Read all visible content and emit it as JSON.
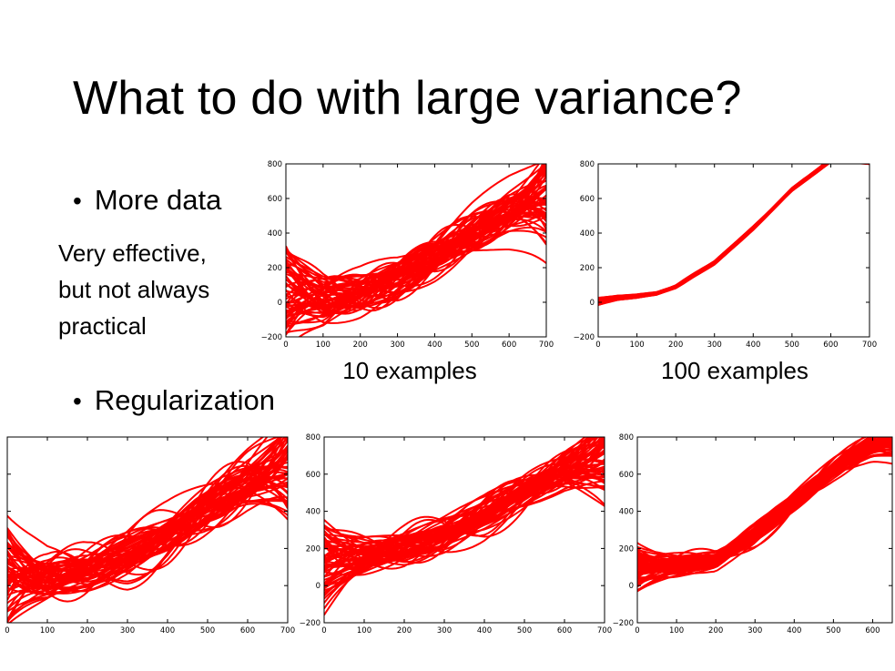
{
  "slide": {
    "title": "What to do with large variance?",
    "bullets": {
      "more_data": "More data",
      "note_lines": [
        "Very effective,",
        "but not always",
        "practical"
      ],
      "regularization": "Regularization"
    },
    "bullet_symbol": "•"
  },
  "colors": {
    "curve": "#ff0000",
    "axis": "#000000",
    "background": "#ffffff"
  },
  "chart_data": [
    {
      "type": "line",
      "caption": "10 examples",
      "xlim": [
        0,
        700
      ],
      "ylim": [
        -200,
        800
      ],
      "xticks": [
        0,
        100,
        200,
        300,
        400,
        500,
        600,
        700
      ],
      "yticks": [
        -200,
        0,
        200,
        400,
        600,
        800
      ],
      "show_yticks": true,
      "curves": {
        "count": 60,
        "base_x": [
          0,
          100,
          200,
          300,
          400,
          500,
          600,
          700
        ],
        "base_y": [
          60,
          20,
          60,
          140,
          260,
          400,
          520,
          620
        ],
        "spread": 260
      }
    },
    {
      "type": "line",
      "caption": "100 examples",
      "xlim": [
        0,
        700
      ],
      "ylim": [
        -200,
        800
      ],
      "xticks": [
        0,
        100,
        200,
        300,
        400,
        500,
        600,
        700
      ],
      "yticks": [
        -200,
        0,
        200,
        400,
        600,
        800
      ],
      "show_yticks": true,
      "curves": {
        "count": 60,
        "base_x": [
          0,
          50,
          100,
          150,
          200,
          300,
          400,
          500,
          600
        ],
        "base_y": [
          5,
          25,
          35,
          50,
          90,
          230,
          430,
          650,
          820
        ],
        "spread": 20
      }
    },
    {
      "type": "line",
      "caption": "",
      "xlim": [
        0,
        700
      ],
      "ylim": [
        -200,
        800
      ],
      "xticks": [
        0,
        100,
        200,
        300,
        400,
        500,
        600,
        700
      ],
      "yticks": [
        -200,
        0,
        200,
        400,
        600,
        800
      ],
      "show_yticks": false,
      "curves": {
        "count": 60,
        "base_x": [
          0,
          100,
          200,
          300,
          400,
          500,
          600,
          700
        ],
        "base_y": [
          80,
          40,
          80,
          160,
          280,
          420,
          540,
          640
        ],
        "spread": 280
      }
    },
    {
      "type": "line",
      "caption": "",
      "xlim": [
        0,
        700
      ],
      "ylim": [
        -200,
        800
      ],
      "xticks": [
        0,
        100,
        200,
        300,
        400,
        500,
        600,
        700
      ],
      "yticks": [
        -200,
        0,
        200,
        400,
        600,
        800
      ],
      "show_yticks": true,
      "curves": {
        "count": 60,
        "base_x": [
          0,
          100,
          200,
          300,
          400,
          500,
          600,
          700
        ],
        "base_y": [
          120,
          150,
          200,
          280,
          380,
          500,
          620,
          700
        ],
        "spread": 200
      }
    },
    {
      "type": "line",
      "caption": "",
      "xlim": [
        0,
        650
      ],
      "ylim": [
        -200,
        800
      ],
      "xticks": [
        0,
        100,
        200,
        300,
        400,
        500,
        600
      ],
      "yticks": [
        -200,
        0,
        200,
        400,
        600,
        800
      ],
      "show_yticks": true,
      "curves": {
        "count": 60,
        "base_x": [
          0,
          100,
          200,
          300,
          400,
          500,
          600,
          650
        ],
        "base_y": [
          100,
          110,
          140,
          280,
          450,
          620,
          760,
          800
        ],
        "spread": 110
      }
    }
  ]
}
